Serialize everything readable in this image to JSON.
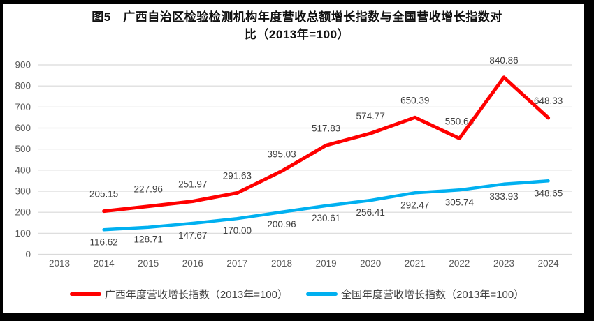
{
  "header": {
    "title_line1": "图5　广西自治区检验检测机构年度营收总额增长指数与全国营收增长指数对",
    "title_line2": "比（2013年=100）"
  },
  "chart_data": {
    "type": "line",
    "title": "图5 广西自治区检验检测机构年度营收总额增长指数与全国营收增长指数对比（2013年=100）",
    "categories": [
      "2013",
      "2014",
      "2015",
      "2016",
      "2017",
      "2018",
      "2019",
      "2020",
      "2021",
      "2022",
      "2023",
      "2024"
    ],
    "xlabel": "",
    "ylabel": "",
    "ylim": [
      0,
      900
    ],
    "ytick_step": 100,
    "y_ticks": [
      "0",
      "100",
      "200",
      "300",
      "400",
      "500",
      "600",
      "700",
      "800",
      "900"
    ],
    "grid": true,
    "legend_position": "bottom",
    "colors": {
      "grid": "#d9d9d9",
      "axis_text": "#595959",
      "data_label_text": "#404040",
      "series_guangxi": "#ff0000",
      "series_national": "#00b0f0"
    },
    "series": [
      {
        "name": "广西年度营收增长指数（2013年=100）",
        "color": "#ff0000",
        "label_position": "above",
        "x": [
          "2014",
          "2015",
          "2016",
          "2017",
          "2018",
          "2019",
          "2020",
          "2021",
          "2022",
          "2023",
          "2024"
        ],
        "values": [
          205.15,
          227.96,
          251.97,
          291.63,
          395.03,
          517.83,
          574.77,
          650.39,
          550.64,
          840.86,
          648.33
        ],
        "labels": [
          "205.15",
          "227.96",
          "251.97",
          "291.63",
          "395.03",
          "517.83",
          "574.77",
          "650.39",
          "550.64",
          "840.86",
          "648.33"
        ]
      },
      {
        "name": "全国年度营收增长指数（2013年=100）",
        "color": "#00b0f0",
        "label_position": "below",
        "x": [
          "2014",
          "2015",
          "2016",
          "2017",
          "2018",
          "2019",
          "2020",
          "2021",
          "2022",
          "2023",
          "2024"
        ],
        "values": [
          116.62,
          128.71,
          147.67,
          170.0,
          200.96,
          230.61,
          256.41,
          292.47,
          305.74,
          333.93,
          348.65
        ],
        "labels": [
          "116.62",
          "128.71",
          "147.67",
          "170.00",
          "200.96",
          "230.61",
          "256.41",
          "292.47",
          "305.74",
          "333.93",
          "348.65"
        ]
      }
    ]
  }
}
